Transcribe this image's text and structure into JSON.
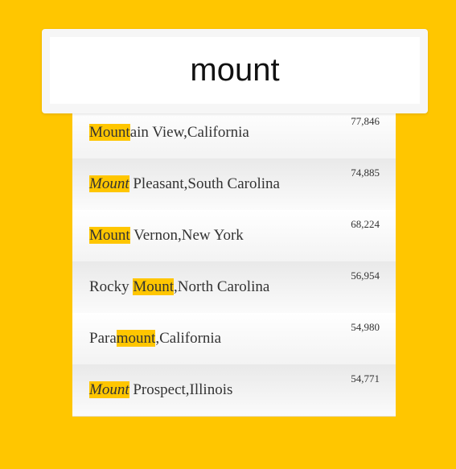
{
  "search": {
    "value": "mount"
  },
  "results": [
    {
      "pre": "",
      "match": "Mount",
      "post": "ain View,California",
      "italic": false,
      "population": "77,846"
    },
    {
      "pre": "",
      "match": "Mount",
      "post": " Pleasant,South Carolina",
      "italic": true,
      "population": "74,885"
    },
    {
      "pre": "",
      "match": "Mount",
      "post": " Vernon,New York",
      "italic": false,
      "population": "68,224"
    },
    {
      "pre": "Rocky ",
      "match": "Mount",
      "post": ",North Carolina",
      "italic": false,
      "population": "56,954"
    },
    {
      "pre": "Para",
      "match": "mount",
      "post": ",California",
      "italic": false,
      "population": "54,980"
    },
    {
      "pre": "",
      "match": "Mount",
      "post": " Prospect,Illinois",
      "italic": true,
      "population": "54,771"
    }
  ],
  "colors": {
    "background": "#ffc600",
    "highlight": "#ffc600"
  }
}
